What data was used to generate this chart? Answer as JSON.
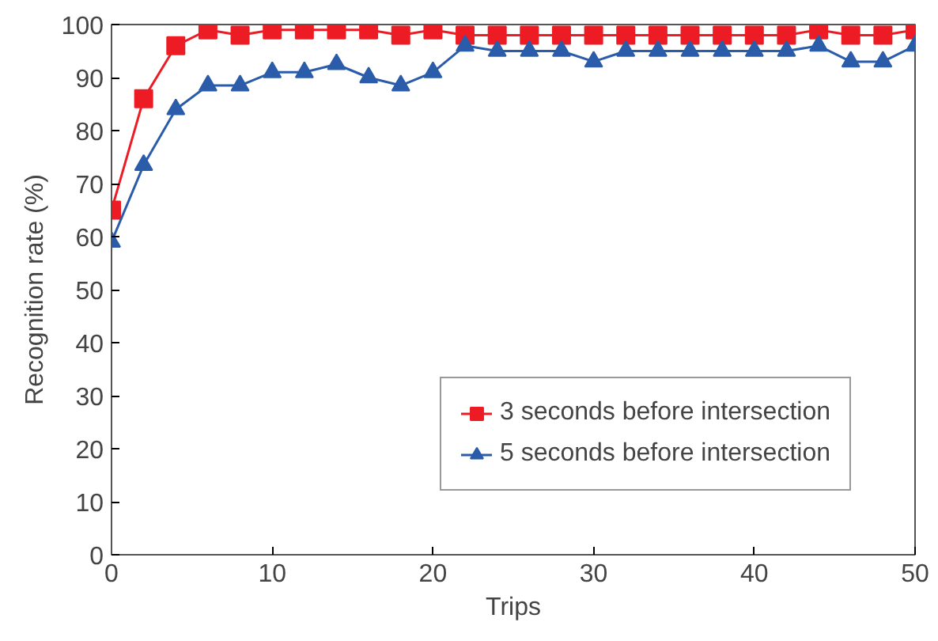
{
  "chart_data": {
    "type": "line",
    "xlabel": "Trips",
    "ylabel": "Recognition rate (%)",
    "x": [
      0,
      2,
      4,
      6,
      8,
      10,
      12,
      14,
      16,
      18,
      20,
      22,
      24,
      26,
      28,
      30,
      32,
      34,
      36,
      38,
      40,
      42,
      44,
      46,
      48,
      50
    ],
    "series": [
      {
        "name": "3 seconds before intersection",
        "color": "#ed1c24",
        "marker": "square",
        "values": [
          65,
          86,
          96,
          99,
          98,
          99,
          99,
          99,
          99,
          98,
          99,
          98,
          98,
          98,
          98,
          98,
          98,
          98,
          98,
          98,
          98,
          98,
          99,
          98,
          98,
          99
        ]
      },
      {
        "name": "5 seconds before intersection",
        "color": "#2a5caa",
        "marker": "triangle",
        "values": [
          59,
          73.5,
          84,
          88.5,
          88.5,
          91,
          91,
          92.5,
          90,
          88.5,
          91,
          96,
          95,
          95,
          95,
          93,
          95,
          95,
          95,
          95,
          95,
          95,
          96,
          93,
          93,
          96
        ]
      }
    ],
    "xlim": [
      0,
      50
    ],
    "ylim": [
      0,
      100
    ],
    "xticks": [
      0,
      10,
      20,
      30,
      40,
      50
    ],
    "yticks": [
      0,
      10,
      20,
      30,
      40,
      50,
      60,
      70,
      80,
      90,
      100
    ],
    "grid": false,
    "legend": "bottom right",
    "line_style": "solid"
  }
}
